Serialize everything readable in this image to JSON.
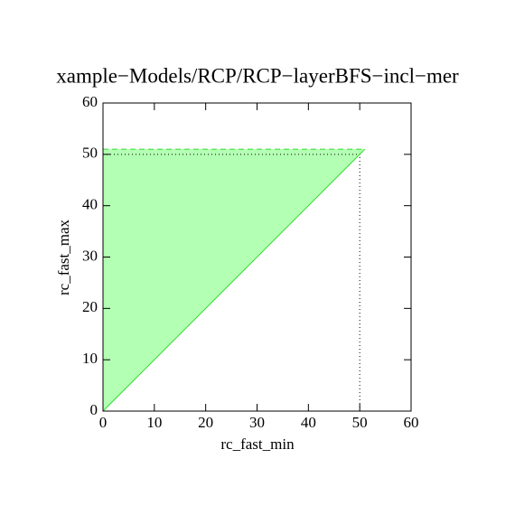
{
  "chart_data": {
    "type": "area",
    "title": "xample−Models/RCP/RCP−layerBFS−incl−mer",
    "x_label": "rc_fast_min",
    "y_label": "rc_fast_max",
    "series": [
      {
        "x": [
          0,
          0,
          51
        ],
        "values": [
          0,
          51,
          51
        ],
        "color": "#b3ffb3",
        "edge_color": "#33dd33"
      }
    ],
    "point": {
      "x": 50,
      "y": 50
    },
    "xlim": [
      0,
      60
    ],
    "ylim": [
      0,
      60
    ],
    "xticks": [
      0,
      10,
      20,
      30,
      40,
      50,
      60
    ],
    "yticks": [
      0,
      10,
      20,
      30,
      40,
      50,
      60
    ]
  }
}
